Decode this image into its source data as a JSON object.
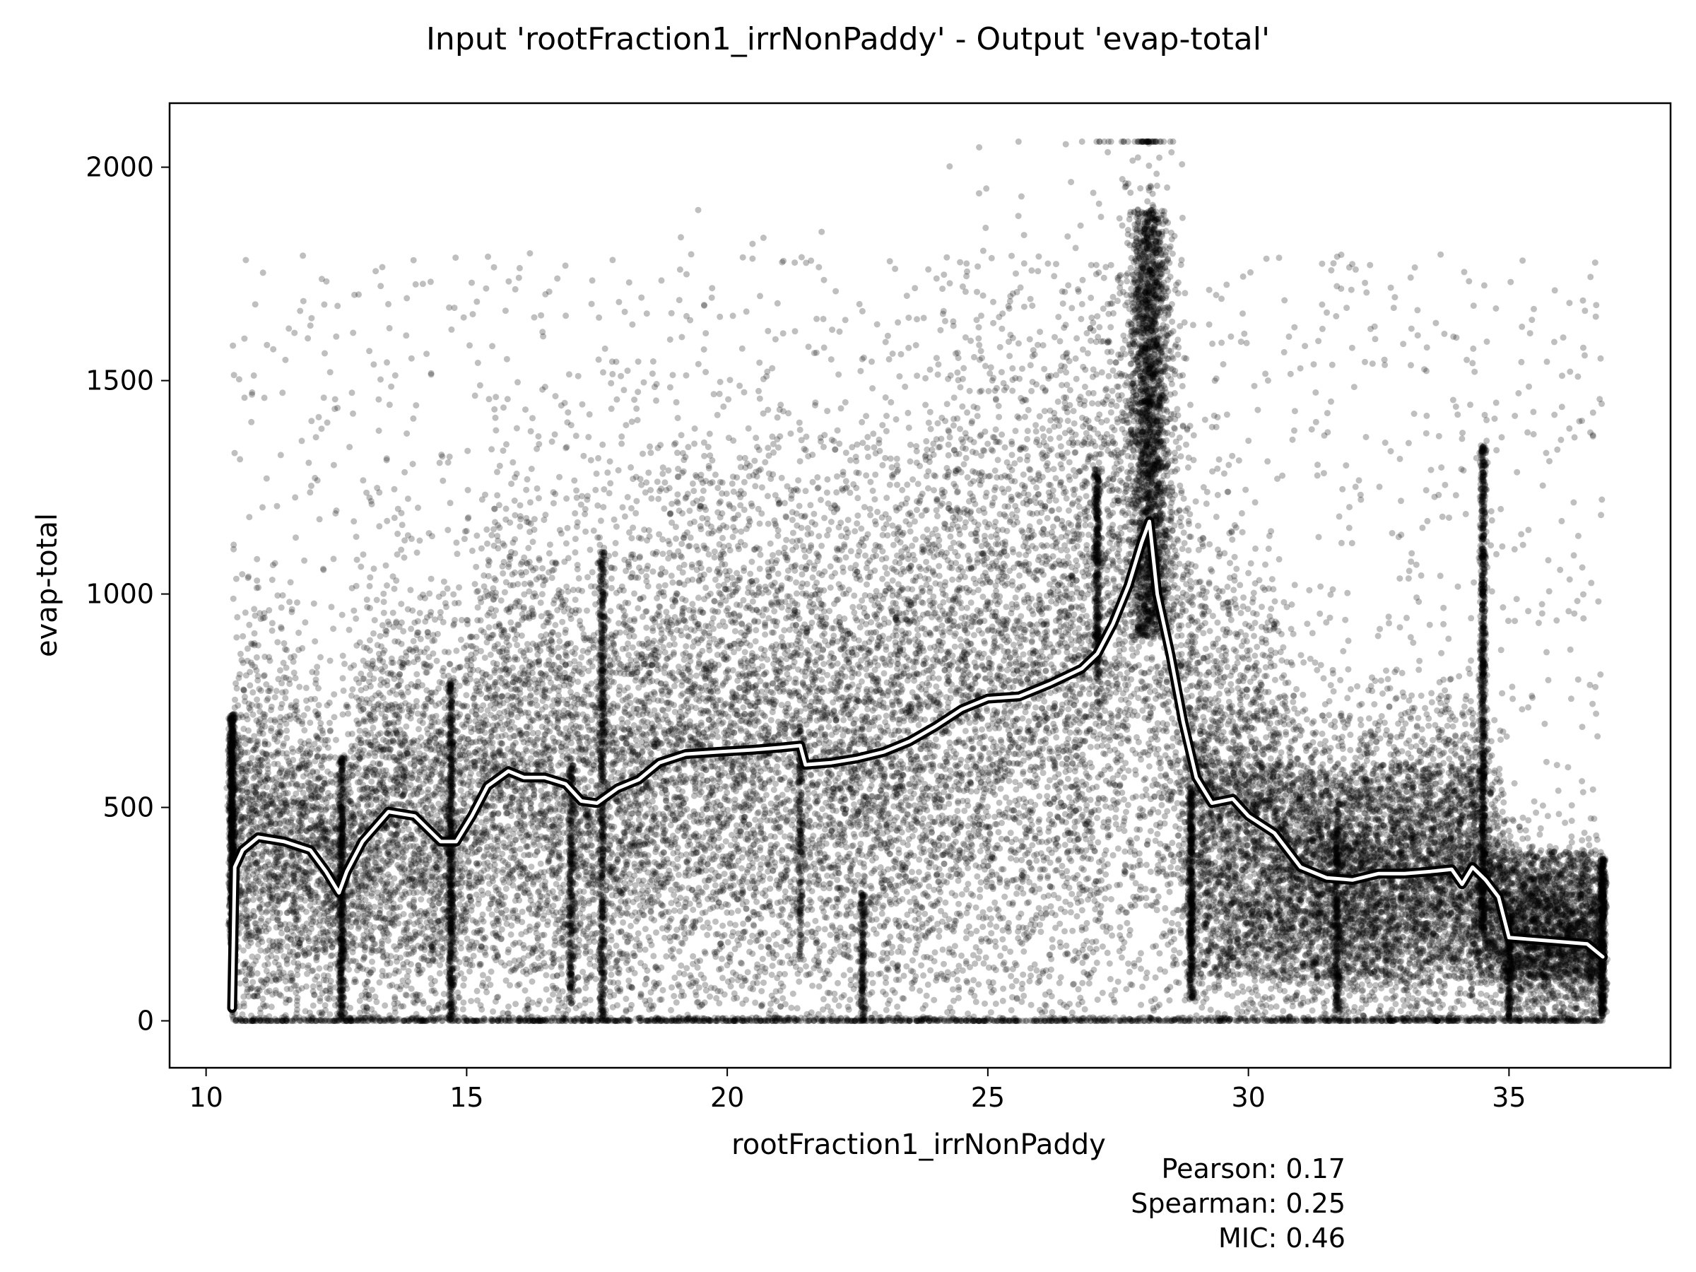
{
  "chart_data": {
    "type": "scatter",
    "title": "Input 'rootFraction1_irrNonPaddy' - Output 'evap-total'",
    "xlabel": "rootFraction1_irrNonPaddy",
    "ylabel": "evap-total",
    "xlim": [
      9.3,
      38.1
    ],
    "ylim": [
      -110,
      2150
    ],
    "xticks": [
      10,
      15,
      20,
      25,
      30,
      35
    ],
    "yticks": [
      0,
      500,
      1000,
      1500,
      2000
    ],
    "xtick_labels": [
      "10",
      "15",
      "20",
      "25",
      "30",
      "35"
    ],
    "ytick_labels": [
      "0",
      "500",
      "1000",
      "1500",
      "2000"
    ],
    "grid": false,
    "points_color": "#000000",
    "trend_color": "#ffffff",
    "trend_outline_color": "#000000",
    "trend_line": {
      "x": [
        10.5,
        10.55,
        10.7,
        11.0,
        11.5,
        12.0,
        12.3,
        12.55,
        12.7,
        13.0,
        13.5,
        14.0,
        14.5,
        14.8,
        15.1,
        15.4,
        15.8,
        16.1,
        16.5,
        16.9,
        17.2,
        17.5,
        17.9,
        18.3,
        18.7,
        19.2,
        19.8,
        20.5,
        21.0,
        21.4,
        21.5,
        22.0,
        22.5,
        23.0,
        23.5,
        24.0,
        24.5,
        25.0,
        25.6,
        26.2,
        26.8,
        27.1,
        27.4,
        27.7,
        27.95,
        28.1,
        28.25,
        28.5,
        28.75,
        29.0,
        29.3,
        29.7,
        30.0,
        30.5,
        31.0,
        31.5,
        32.0,
        32.5,
        33.0,
        33.5,
        33.9,
        34.1,
        34.3,
        34.55,
        34.8,
        35.0,
        35.5,
        36.0,
        36.5,
        36.8
      ],
      "y": [
        30,
        360,
        400,
        430,
        420,
        400,
        350,
        300,
        350,
        420,
        490,
        480,
        420,
        420,
        480,
        550,
        585,
        570,
        570,
        555,
        515,
        510,
        545,
        565,
        605,
        625,
        630,
        635,
        640,
        645,
        600,
        605,
        615,
        630,
        655,
        690,
        730,
        755,
        760,
        790,
        825,
        860,
        930,
        1020,
        1120,
        1170,
        1000,
        860,
        700,
        570,
        510,
        520,
        480,
        440,
        360,
        335,
        330,
        345,
        345,
        350,
        355,
        320,
        360,
        330,
        290,
        195,
        190,
        185,
        180,
        150
      ]
    },
    "approx_point_count": 26000
  },
  "stats": {
    "pearson": "Pearson: 0.17",
    "spearman": "Spearman: 0.25",
    "mic": "MIC: 0.46"
  }
}
